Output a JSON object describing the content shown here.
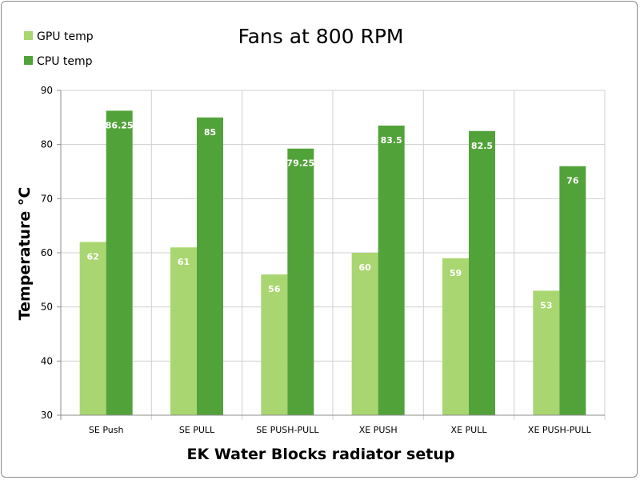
{
  "chart_data": {
    "type": "bar",
    "title": "Fans at 800 RPM",
    "xlabel": "EK Water Blocks radiator setup",
    "ylabel": "Temperature °C",
    "ylim": [
      30,
      90
    ],
    "yticks": [
      30,
      40,
      50,
      60,
      70,
      80,
      90
    ],
    "grid": true,
    "legend_position": "top-left",
    "categories": [
      "SE Push",
      "SE PULL",
      "SE PUSH-PULL",
      "XE PUSH",
      "XE PULL",
      "XE PUSH-PULL"
    ],
    "series": [
      {
        "name": "GPU temp",
        "color": "#a9d670",
        "values": [
          62,
          61,
          56,
          60,
          59,
          53
        ],
        "labels": [
          "62",
          "61",
          "56",
          "60",
          "59",
          "53"
        ]
      },
      {
        "name": "CPU temp",
        "color": "#52a23a",
        "values": [
          86.25,
          85,
          79.25,
          83.5,
          82.5,
          76
        ],
        "labels": [
          "86.25",
          "85",
          "79.25",
          "83.5",
          "82.5",
          "76"
        ]
      }
    ]
  }
}
